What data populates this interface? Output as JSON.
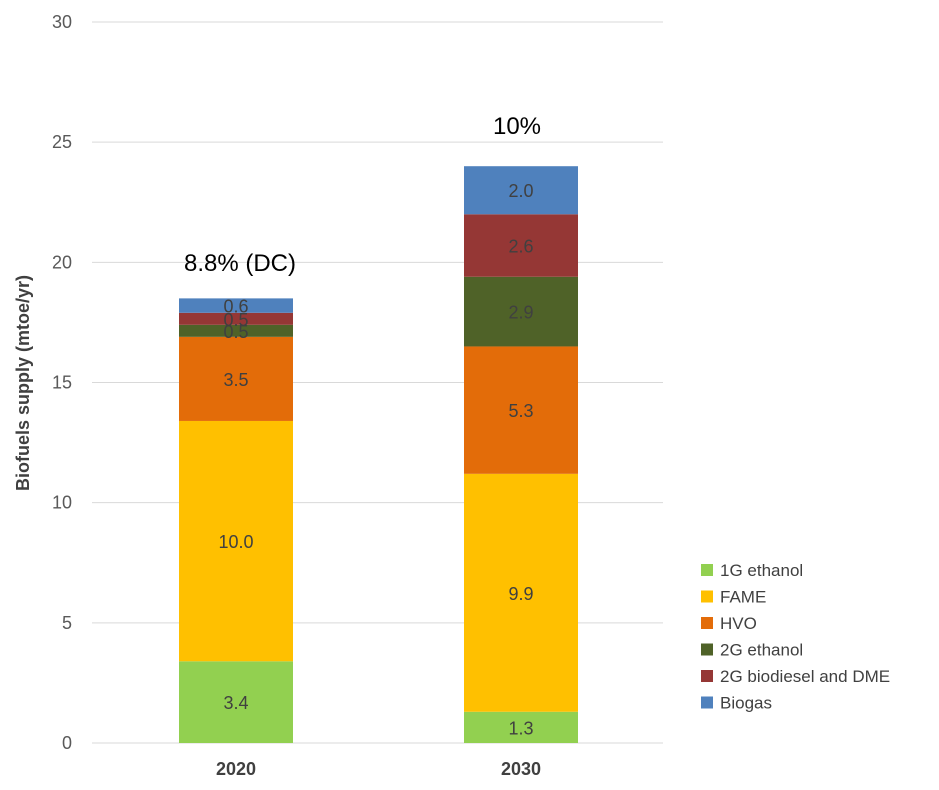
{
  "chart_data": {
    "type": "bar",
    "stacked": true,
    "title": "",
    "xlabel": "",
    "ylabel": "Biofuels supply (mtoe/yr)",
    "ylim": [
      0,
      30
    ],
    "yticks": [
      0,
      5,
      10,
      15,
      20,
      25,
      30
    ],
    "grid": true,
    "legend_position": "bottom-right",
    "categories": [
      "2020",
      "2030"
    ],
    "series": [
      {
        "name": "1G ethanol",
        "values": [
          3.4,
          1.3
        ],
        "labels": [
          "3.4",
          "1.3"
        ],
        "color": "#92d050"
      },
      {
        "name": "FAME",
        "values": [
          10.0,
          9.9
        ],
        "labels": [
          "10.0",
          "9.9"
        ],
        "color": "#ffc000"
      },
      {
        "name": "HVO",
        "values": [
          3.5,
          5.3
        ],
        "labels": [
          "3.5",
          "5.3"
        ],
        "color": "#e36c09"
      },
      {
        "name": "2G ethanol",
        "values": [
          0.5,
          2.9
        ],
        "labels": [
          "0.5",
          "2.9"
        ],
        "color": "#4f6228"
      },
      {
        "name": "2G biodiesel and DME",
        "values": [
          0.5,
          2.6
        ],
        "labels": [
          "0.5",
          "2.6"
        ],
        "color": "#953735"
      },
      {
        "name": "Biogas",
        "values": [
          0.6,
          2.0
        ],
        "labels": [
          "0.6",
          "2.0"
        ],
        "color": "#4f81bd"
      }
    ],
    "annotations": [
      "8.8% (DC)",
      "10%"
    ]
  }
}
